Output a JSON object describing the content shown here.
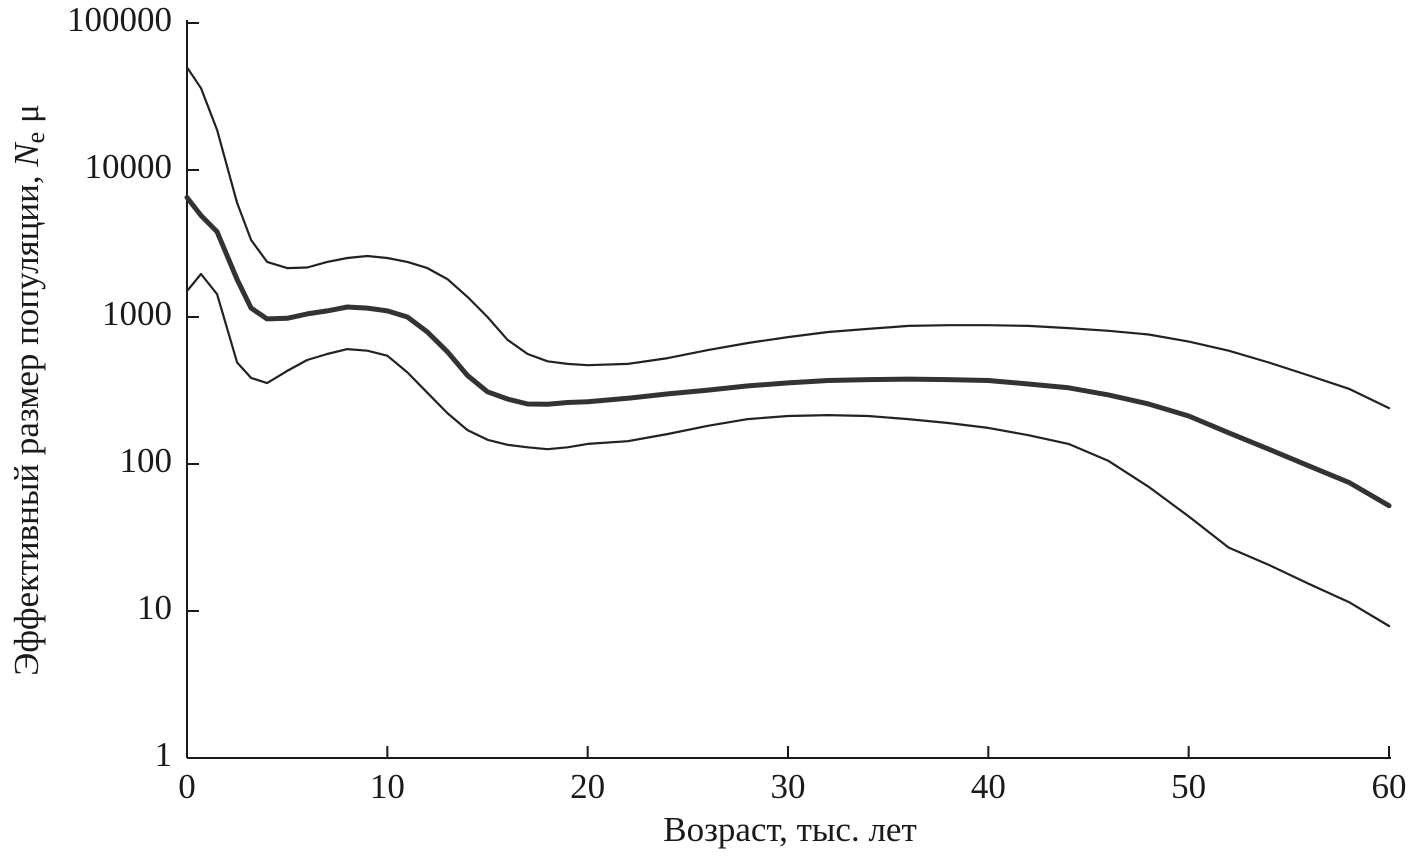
{
  "chart_data": {
    "type": "line",
    "xlabel": "Возраст, тыс. лет",
    "ylabel": {
      "text": "Эффективный размер популяции, ",
      "symbol": "N",
      "subscript": "e",
      "suffix": " μ"
    },
    "x": [
      0,
      0.7,
      1.5,
      2.5,
      3.2,
      4,
      5,
      6,
      7,
      8,
      9,
      10,
      11,
      12,
      13,
      14,
      15,
      16,
      17,
      18,
      19,
      20,
      22,
      24,
      26,
      28,
      30,
      32,
      34,
      36,
      38,
      40,
      42,
      44,
      46,
      48,
      50,
      52,
      54,
      56,
      58,
      60
    ],
    "series": [
      {
        "color": "#222222",
        "values": [
          50000,
          36000,
          18700,
          5970,
          3340,
          2370,
          2150,
          2170,
          2370,
          2520,
          2600,
          2520,
          2370,
          2150,
          1810,
          1370,
          1000,
          700,
          560,
          500,
          480,
          470,
          480,
          525,
          595,
          665,
          730,
          790,
          830,
          870,
          880,
          880,
          870,
          840,
          805,
          760,
          680,
          590,
          490,
          400,
          325,
          240
        ]
      },
      {
        "color": "#333333",
        "values": [
          6500,
          4900,
          3800,
          1800,
          1150,
          970,
          980,
          1050,
          1100,
          1170,
          1150,
          1100,
          1000,
          790,
          580,
          400,
          310,
          277,
          256,
          255,
          262,
          265,
          280,
          300,
          318,
          340,
          356,
          370,
          375,
          378,
          375,
          370,
          350,
          330,
          295,
          256,
          212,
          163,
          126,
          97,
          75,
          52
        ]
      },
      {
        "color": "#222222",
        "values": [
          1500,
          1960,
          1430,
          490,
          385,
          355,
          430,
          510,
          560,
          605,
          590,
          545,
          420,
          305,
          222,
          170,
          146,
          135,
          130,
          126,
          130,
          137,
          143,
          160,
          182,
          202,
          212,
          215,
          212,
          202,
          190,
          176,
          157,
          137,
          105,
          70,
          44,
          27,
          20.6,
          15.3,
          11.5,
          7.9
        ]
      }
    ],
    "xlim": [
      0,
      60
    ],
    "xticks": [
      0,
      10,
      20,
      30,
      40,
      50,
      60
    ],
    "ylim": [
      1,
      100000
    ],
    "yticks": [
      1,
      10,
      100,
      1000,
      10000,
      100000
    ],
    "ylog": true
  }
}
